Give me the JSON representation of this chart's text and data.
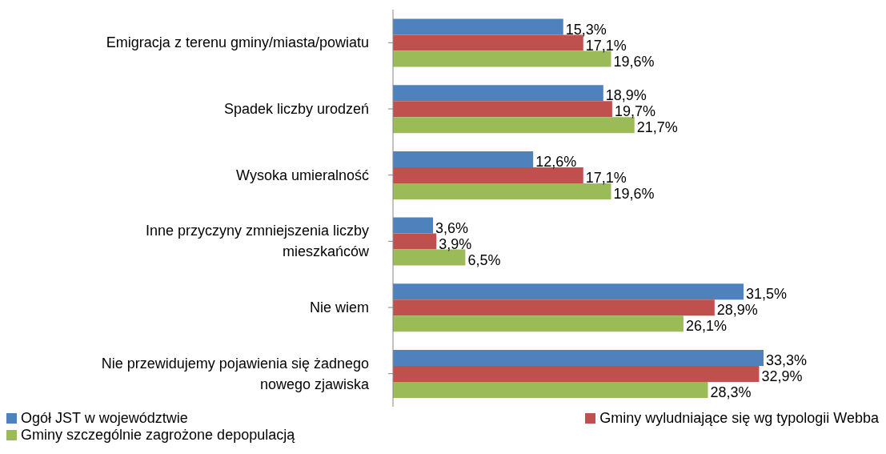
{
  "chart_data": {
    "type": "bar",
    "orientation": "horizontal",
    "categories": [
      "Emigracja z terenu gminy/miasta/powiatu",
      "Spadek liczby urodzeń",
      "Wysoka umieralność",
      "Inne przyczyny zmniejszenia liczby mieszkańców",
      "Nie wiem",
      "Nie przewidujemy pojawienia się żadnego nowego zjawiska"
    ],
    "series": [
      {
        "name": "Ogół JST w województwie",
        "color": "#4f81bd",
        "values": [
          15.3,
          18.9,
          12.6,
          3.6,
          31.5,
          33.3
        ],
        "value_labels": [
          "15,3%",
          "18,9%",
          "12,6%",
          "3,6%",
          "31,5%",
          "33,3%"
        ]
      },
      {
        "name": "Gminy wyludniające się wg typologii Webba",
        "color": "#c0504d",
        "values": [
          17.1,
          19.7,
          17.1,
          3.9,
          28.9,
          32.9
        ],
        "value_labels": [
          "17,1%",
          "19,7%",
          "17,1%",
          "3,9%",
          "28,9%",
          "32,9%"
        ]
      },
      {
        "name": "Gminy szczególnie zagrożone depopulacją",
        "color": "#9bbb59",
        "values": [
          19.6,
          21.7,
          19.6,
          6.5,
          26.1,
          28.3
        ],
        "value_labels": [
          "19,6%",
          "21,7%",
          "19,6%",
          "6,5%",
          "26,1%",
          "28,3%"
        ]
      }
    ],
    "legend": "bottom",
    "grid": false
  }
}
